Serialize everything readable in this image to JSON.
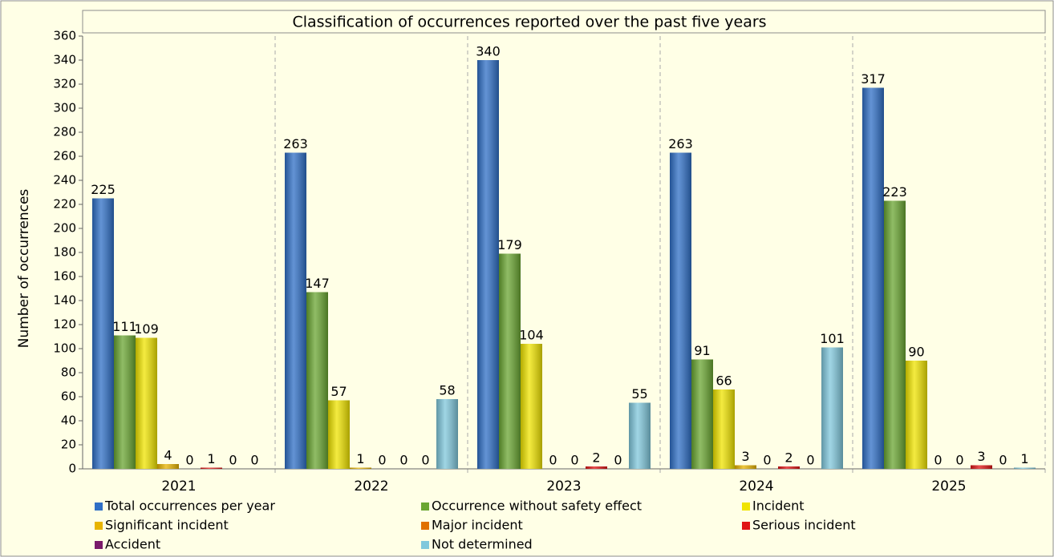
{
  "chart_data": {
    "type": "bar",
    "title": "Classification of occurrences reported over the past five years",
    "y_label": "Number of occurrences",
    "categories": [
      "2021",
      "2022",
      "2023",
      "2024",
      "2025"
    ],
    "series": [
      {
        "name": "Total occurrences per year",
        "color": "#2f6fc6",
        "values": [
          225,
          263,
          340,
          263,
          317
        ]
      },
      {
        "name": "Occurrence without safety effect",
        "color": "#6aa632",
        "values": [
          111,
          147,
          179,
          91,
          223
        ]
      },
      {
        "name": "Incident",
        "color": "#f0e400",
        "values": [
          109,
          57,
          104,
          66,
          90
        ]
      },
      {
        "name": "Significant incident",
        "color": "#e8b400",
        "values": [
          4,
          1,
          0,
          3,
          0
        ]
      },
      {
        "name": "Major incident",
        "color": "#e07000",
        "values": [
          0,
          0,
          0,
          0,
          0
        ]
      },
      {
        "name": "Serious incident",
        "color": "#e01414",
        "values": [
          1,
          0,
          2,
          2,
          3
        ]
      },
      {
        "name": "Accident",
        "color": "#7a1a6a",
        "values": [
          0,
          0,
          0,
          0,
          0
        ]
      },
      {
        "name": "Not determined",
        "color": "#80c8dc",
        "values": [
          0,
          58,
          55,
          101,
          1
        ]
      }
    ],
    "ylim": [
      0,
      360
    ],
    "yticks": [
      0,
      20,
      40,
      60,
      80,
      100,
      120,
      140,
      160,
      180,
      200,
      220,
      240,
      260,
      280,
      300,
      320,
      340,
      360
    ]
  }
}
